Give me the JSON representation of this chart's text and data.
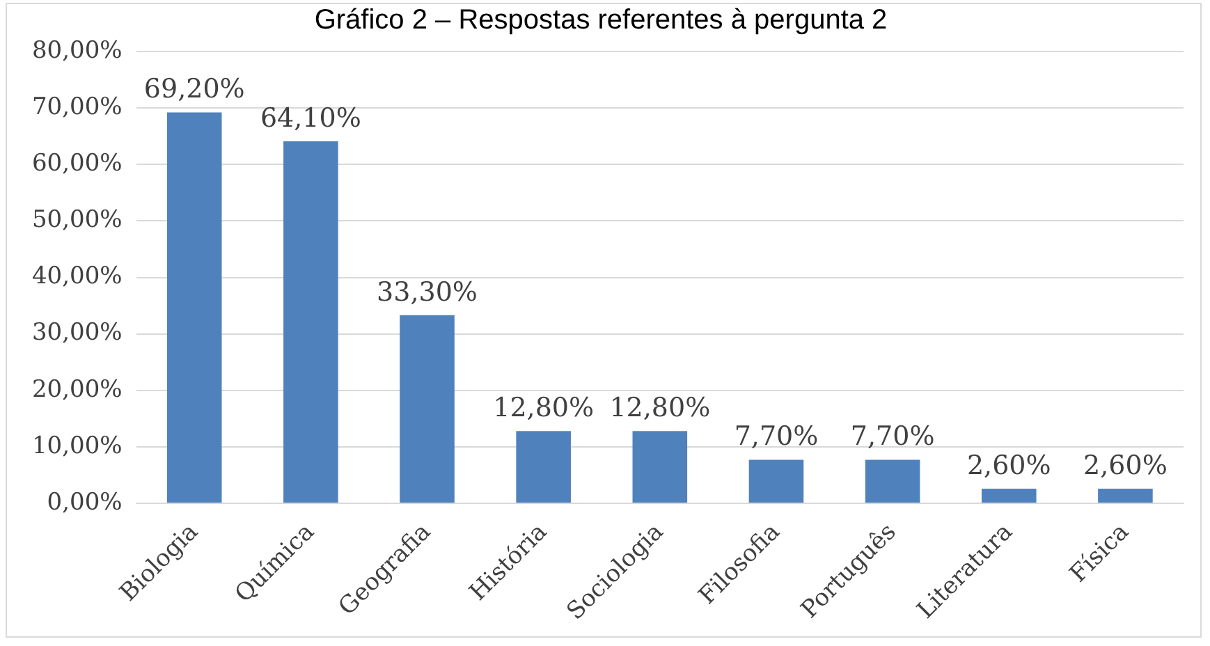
{
  "chart_data": {
    "type": "bar",
    "title": "Gráfico 2 – Respostas referentes à pergunta 2",
    "categories": [
      "Biologia",
      "Química",
      "Geografia",
      "História",
      "Sociologia",
      "Filosofia",
      "Português",
      "Literatura",
      "Física"
    ],
    "values": [
      69.2,
      64.1,
      33.3,
      12.8,
      12.8,
      7.7,
      7.7,
      2.6,
      2.6
    ],
    "value_labels": [
      "69,20%",
      "64,10%",
      "33,30%",
      "12,80%",
      "12,80%",
      "7,70%",
      "7,70%",
      "2,60%",
      "2,60%"
    ],
    "color": "#4f81bd",
    "ylim": [
      0,
      80
    ],
    "yticks": [
      {
        "value": 0,
        "label": "0,00%"
      },
      {
        "value": 10,
        "label": "10,00%"
      },
      {
        "value": 20,
        "label": "20,00%"
      },
      {
        "value": 30,
        "label": "30,00%"
      },
      {
        "value": 40,
        "label": "40,00%"
      },
      {
        "value": 50,
        "label": "50,00%"
      },
      {
        "value": 60,
        "label": "60,00%"
      },
      {
        "value": 70,
        "label": "70,00%"
      },
      {
        "value": 80,
        "label": "80,00%"
      }
    ],
    "grid": "y",
    "legend": false
  }
}
